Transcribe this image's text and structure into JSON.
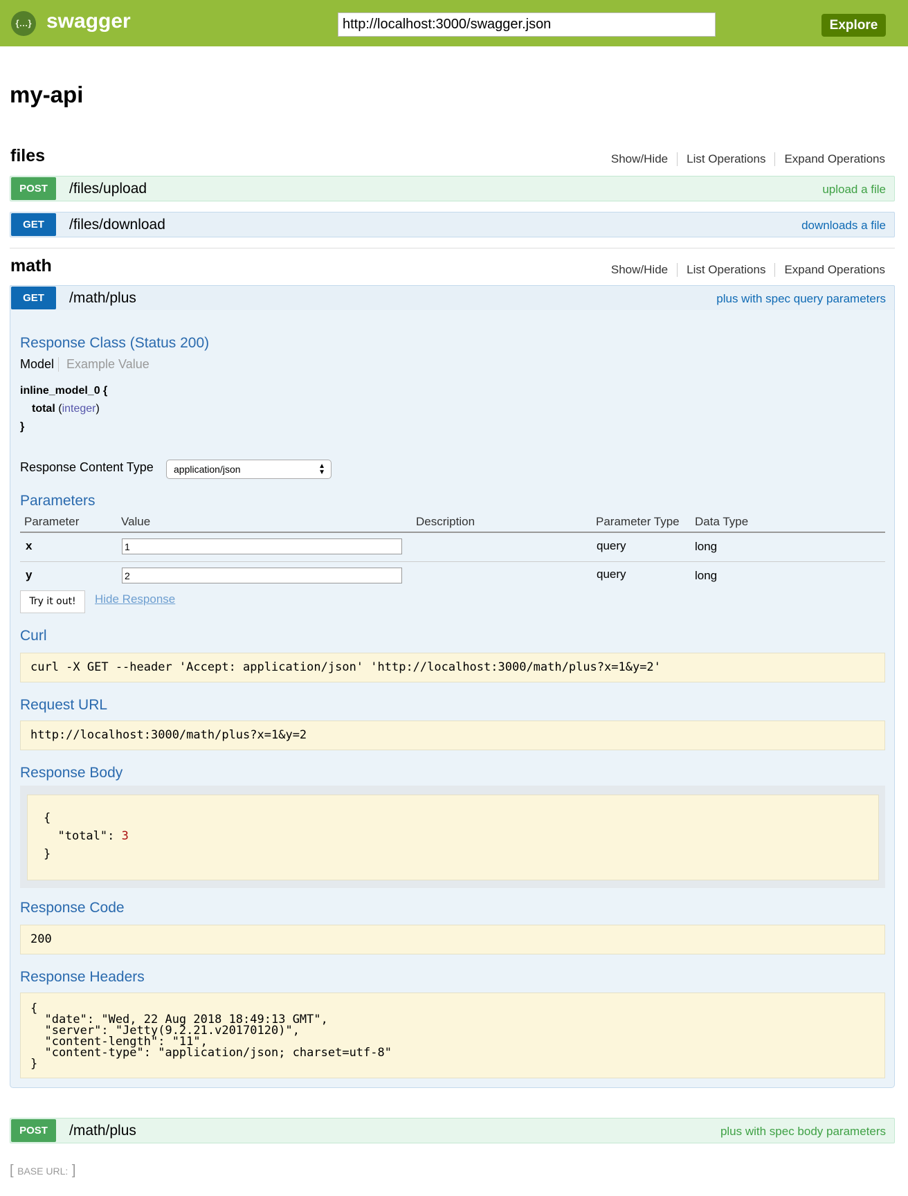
{
  "header": {
    "brand": "swagger",
    "url": "http://localhost:3000/swagger.json",
    "explore": "Explore",
    "colors": {
      "header": "#94bc3a",
      "explore": "#547f00"
    }
  },
  "api_title": "my-api",
  "resource_links": {
    "show_hide": "Show/Hide",
    "list": "List Operations",
    "expand": "Expand Operations"
  },
  "resources": [
    {
      "name": "files",
      "operations": [
        {
          "method": "POST",
          "path": "/files/upload",
          "summary": "upload a file"
        },
        {
          "method": "GET",
          "path": "/files/download",
          "summary": "downloads a file"
        }
      ]
    },
    {
      "name": "math",
      "operations": [
        {
          "method": "GET",
          "path": "/math/plus",
          "summary": "plus with spec query parameters"
        },
        {
          "method": "POST",
          "path": "/math/plus",
          "summary": "plus with spec body parameters"
        }
      ]
    }
  ],
  "expanded": {
    "response_class": "Response Class (Status 200)",
    "model_tab": "Model",
    "example_tab": "Example Value",
    "model": {
      "name": "inline_model_0 {",
      "field": "total",
      "type": "integer",
      "close": "}"
    },
    "content_type_label": "Response Content Type",
    "content_type": "application/json",
    "parameters_title": "Parameters",
    "columns": [
      "Parameter",
      "Value",
      "Description",
      "Parameter Type",
      "Data Type"
    ],
    "params": [
      {
        "name": "x",
        "value": "1",
        "type": "query",
        "data_type": "long"
      },
      {
        "name": "y",
        "value": "2",
        "type": "query",
        "data_type": "long"
      }
    ],
    "try_button": "Try it out!",
    "hide_response": "Hide Response",
    "curl_title": "Curl",
    "curl": "curl -X GET --header 'Accept: application/json' 'http://localhost:3000/math/plus?x=1&y=2'",
    "request_url_title": "Request URL",
    "request_url": "http://localhost:3000/math/plus?x=1&y=2",
    "response_body_title": "Response Body",
    "body_open": "{",
    "body_key": "\"total\": ",
    "body_value": "3",
    "body_close": "}",
    "response_code_title": "Response Code",
    "response_code": "200",
    "response_headers_title": "Response Headers",
    "response_headers": "{\n  \"date\": \"Wed, 22 Aug 2018 18:49:13 GMT\",\n  \"server\": \"Jetty(9.2.21.v20170120)\",\n  \"content-length\": \"11\",\n  \"content-type\": \"application/json; charset=utf-8\"\n}"
  },
  "footer": {
    "base_url": "BASE URL:"
  }
}
